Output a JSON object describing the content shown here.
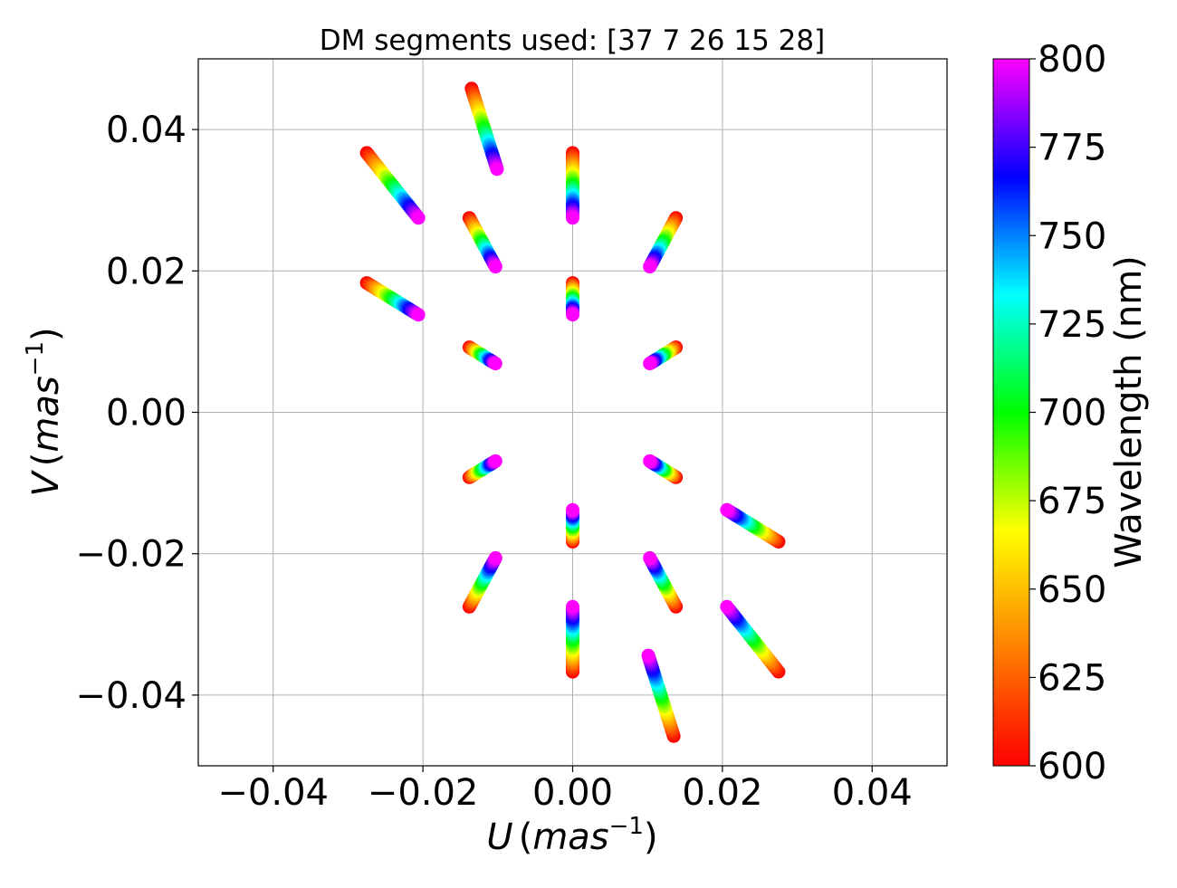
{
  "chart_data": {
    "type": "scatter",
    "title": "DM segments used: [37  7 26 15 28]",
    "xlabel": {
      "var": "U",
      "unit_open": "(",
      "unit": "mas",
      "exp": "−1",
      "unit_close": ")"
    },
    "ylabel": {
      "var": "V",
      "unit_open": "(",
      "unit": "mas",
      "exp": "−1",
      "unit_close": ")"
    },
    "xlim": [
      -0.05,
      0.05
    ],
    "ylim": [
      -0.05,
      0.05
    ],
    "xticks": [
      -0.04,
      -0.02,
      0.0,
      0.02,
      0.04
    ],
    "yticks": [
      -0.04,
      -0.02,
      0.0,
      0.02,
      0.04
    ],
    "xtick_labels": [
      "−0.04",
      "−0.02",
      "0.00",
      "0.02",
      "0.04"
    ],
    "ytick_labels": [
      "−0.04",
      "−0.02",
      "0.00",
      "0.02",
      "0.04"
    ],
    "grid": true,
    "colorbar": {
      "label": "Wavelength (nm)",
      "range": [
        600,
        800
      ],
      "ticks": [
        600,
        625,
        650,
        675,
        700,
        725,
        750,
        775,
        800
      ],
      "tick_labels": [
        "600",
        "625",
        "650",
        "675",
        "700",
        "725",
        "750",
        "775",
        "800"
      ],
      "colormap": [
        "#ff0000",
        "#ff8000",
        "#ffff00",
        "#00ff00",
        "#00ffff",
        "#0000ff",
        "#ff00ff"
      ],
      "scale": "linear"
    },
    "wavelength_range_nm": [
      600,
      800
    ],
    "series": [
      {
        "u_at_600nm": 0.0,
        "v_at_600nm": 0.0367,
        "u_at_800nm": 0.0,
        "v_at_800nm": 0.0275
      },
      {
        "u_at_600nm": 0.0,
        "v_at_600nm": -0.0367,
        "u_at_800nm": 0.0,
        "v_at_800nm": -0.0275
      },
      {
        "u_at_600nm": 0.0,
        "v_at_600nm": 0.0183,
        "u_at_800nm": 0.0,
        "v_at_800nm": 0.0138
      },
      {
        "u_at_600nm": 0.0,
        "v_at_600nm": -0.0183,
        "u_at_800nm": 0.0,
        "v_at_800nm": -0.0138
      },
      {
        "u_at_600nm": -0.0135,
        "v_at_600nm": 0.0458,
        "u_at_800nm": -0.0101,
        "v_at_800nm": 0.0344
      },
      {
        "u_at_600nm": 0.0135,
        "v_at_600nm": -0.0458,
        "u_at_800nm": 0.0101,
        "v_at_800nm": -0.0344
      },
      {
        "u_at_600nm": -0.0275,
        "v_at_600nm": 0.0367,
        "u_at_800nm": -0.0206,
        "v_at_800nm": 0.0275
      },
      {
        "u_at_600nm": 0.0275,
        "v_at_600nm": -0.0367,
        "u_at_800nm": 0.0206,
        "v_at_800nm": -0.0275
      },
      {
        "u_at_600nm": -0.0275,
        "v_at_600nm": 0.0183,
        "u_at_800nm": -0.0206,
        "v_at_800nm": 0.0138
      },
      {
        "u_at_600nm": 0.0275,
        "v_at_600nm": -0.0183,
        "u_at_800nm": 0.0206,
        "v_at_800nm": -0.0138
      },
      {
        "u_at_600nm": -0.0138,
        "v_at_600nm": 0.0275,
        "u_at_800nm": -0.0103,
        "v_at_800nm": 0.0206
      },
      {
        "u_at_600nm": 0.0138,
        "v_at_600nm": -0.0275,
        "u_at_800nm": 0.0103,
        "v_at_800nm": -0.0206
      },
      {
        "u_at_600nm": 0.0138,
        "v_at_600nm": 0.0275,
        "u_at_800nm": 0.0103,
        "v_at_800nm": 0.0206
      },
      {
        "u_at_600nm": -0.0138,
        "v_at_600nm": -0.0275,
        "u_at_800nm": -0.0103,
        "v_at_800nm": -0.0206
      },
      {
        "u_at_600nm": -0.0138,
        "v_at_600nm": 0.0092,
        "u_at_800nm": -0.0103,
        "v_at_800nm": 0.0069
      },
      {
        "u_at_600nm": 0.0138,
        "v_at_600nm": -0.0092,
        "u_at_800nm": 0.0103,
        "v_at_800nm": -0.0069
      },
      {
        "u_at_600nm": 0.0138,
        "v_at_600nm": 0.0092,
        "u_at_800nm": 0.0103,
        "v_at_800nm": 0.0069
      },
      {
        "u_at_600nm": -0.0138,
        "v_at_600nm": -0.0092,
        "u_at_800nm": -0.0103,
        "v_at_800nm": -0.0069
      }
    ]
  }
}
